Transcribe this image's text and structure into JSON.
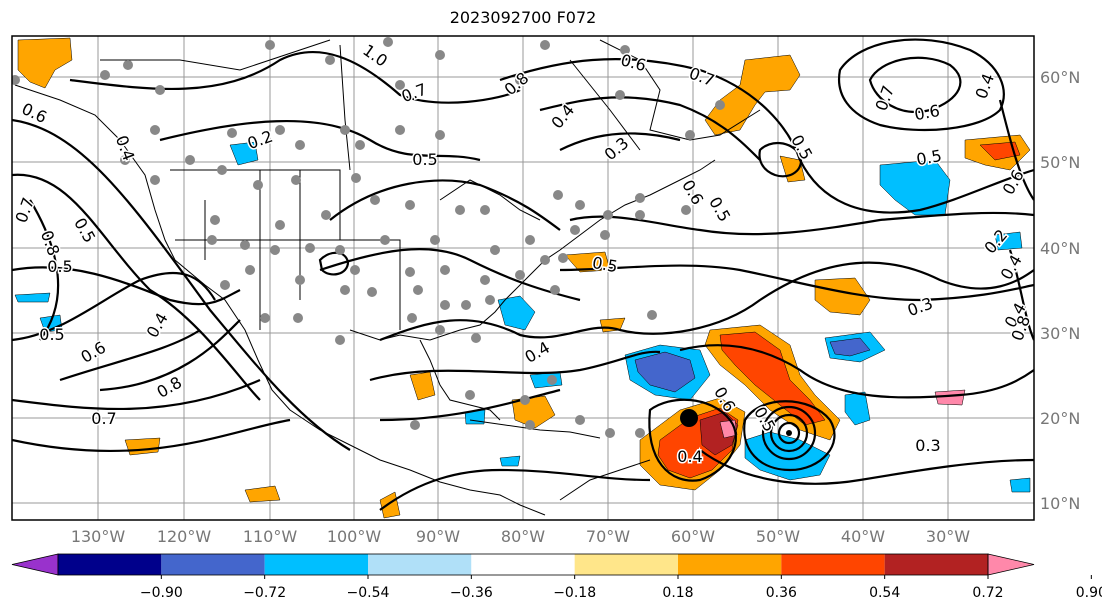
{
  "title": "2023092700 F072",
  "lon_labels": [
    "130°W",
    "120°W",
    "110°W",
    "100°W",
    "90°W",
    "80°W",
    "70°W",
    "60°W",
    "50°W",
    "40°W",
    "30°W"
  ],
  "lat_labels": [
    "60°N",
    "50°N",
    "40°N",
    "30°N",
    "20°N",
    "10°N"
  ],
  "contour_labels": [
    "0.6",
    "1.0",
    "0.7",
    "0.8",
    "0.4",
    "0.6",
    "0.7",
    "0.5",
    "0.7",
    "0.6",
    "0.2",
    "0.4",
    "0.5",
    "0.3",
    "0.5",
    "0.6",
    "0.5",
    "0.4",
    "0.8",
    "0.7",
    "0.5",
    "0.5",
    "0.5",
    "0.6",
    "0.4",
    "0.8",
    "0.7",
    "0.6",
    "0.5",
    "0.3",
    "0.4",
    "0.4",
    "0.5",
    "0.2",
    "0.3",
    "0.4",
    "0.4",
    "0.6",
    "0.8"
  ],
  "colorbar": {
    "ticks": [
      "−0.90",
      "−0.72",
      "−0.54",
      "−0.36",
      "−0.18",
      "0.18",
      "0.36",
      "0.54",
      "0.72",
      "0.90"
    ],
    "colors": [
      "#9932cc",
      "#00008b",
      "#4466cc",
      "#00bfff",
      "#b0e0f8",
      "#ffffff",
      "#ffe68a",
      "#ffa500",
      "#ff4500",
      "#b22222",
      "#ff88aa"
    ]
  }
}
